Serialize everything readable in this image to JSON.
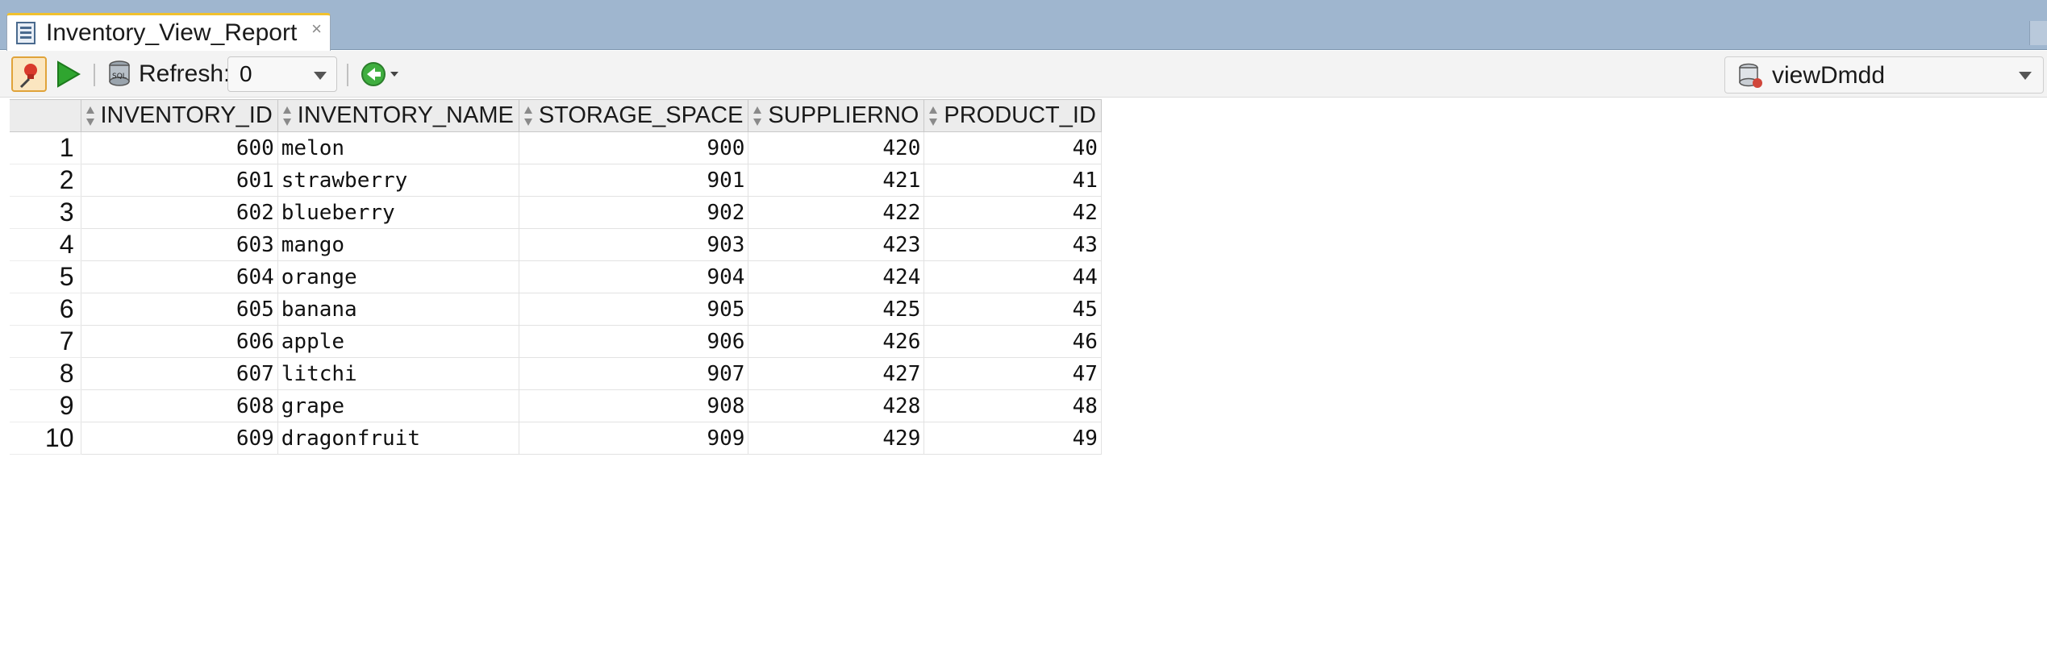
{
  "tab": {
    "title": "Inventory_View_Report",
    "close": "×"
  },
  "toolbar": {
    "refresh_label": "Refresh:",
    "refresh_value": "0",
    "connection": "viewDmdd"
  },
  "grid": {
    "columns": [
      "INVENTORY_ID",
      "INVENTORY_NAME",
      "STORAGE_SPACE",
      "SUPPLIERNO",
      "PRODUCT_ID"
    ],
    "rows": [
      {
        "n": "1",
        "id": "600",
        "name": "melon",
        "space": "900",
        "supplier": "420",
        "product": "40"
      },
      {
        "n": "2",
        "id": "601",
        "name": "strawberry",
        "space": "901",
        "supplier": "421",
        "product": "41"
      },
      {
        "n": "3",
        "id": "602",
        "name": "blueberry",
        "space": "902",
        "supplier": "422",
        "product": "42"
      },
      {
        "n": "4",
        "id": "603",
        "name": "mango",
        "space": "903",
        "supplier": "423",
        "product": "43"
      },
      {
        "n": "5",
        "id": "604",
        "name": "orange",
        "space": "904",
        "supplier": "424",
        "product": "44"
      },
      {
        "n": "6",
        "id": "605",
        "name": "banana",
        "space": "905",
        "supplier": "425",
        "product": "45"
      },
      {
        "n": "7",
        "id": "606",
        "name": "apple",
        "space": "906",
        "supplier": "426",
        "product": "46"
      },
      {
        "n": "8",
        "id": "607",
        "name": "litchi",
        "space": "907",
        "supplier": "427",
        "product": "47"
      },
      {
        "n": "9",
        "id": "608",
        "name": "grape",
        "space": "908",
        "supplier": "428",
        "product": "48"
      },
      {
        "n": "10",
        "id": "609",
        "name": "dragonfruit",
        "space": "909",
        "supplier": "429",
        "product": "49"
      }
    ]
  },
  "icons": {
    "tab": "report-icon",
    "pin": "pin-icon",
    "run": "run-icon",
    "refresh": "sql-refresh-icon",
    "nav": "back-arrow-icon",
    "connection": "database-icon"
  },
  "colors": {
    "tabbar": "#9fb6cf",
    "accent": "#f1c12e",
    "run": "#2fa52f",
    "nav": "#3fae3f"
  }
}
